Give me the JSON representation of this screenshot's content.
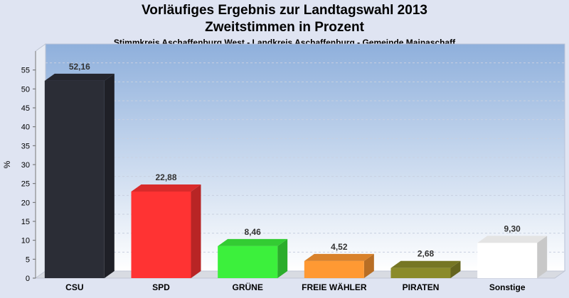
{
  "header": {
    "title_line1": "Vorläufiges Ergebnis zur Landtagswahl 2013",
    "title_line2": "Zweitstimmen in Prozent",
    "subtitle": "Stimmkreis Aschaffenburg West - Landkreis Aschaffenburg - Gemeinde Mainaschaff"
  },
  "chart_data": {
    "type": "bar",
    "title": "Vorläufiges Ergebnis zur Landtagswahl 2013 Zweitstimmen in Prozent",
    "subtitle": "Stimmkreis Aschaffenburg West - Landkreis Aschaffenburg - Gemeinde Mainaschaff",
    "ylabel": "%",
    "xlabel": "",
    "ylim": [
      0,
      60
    ],
    "yticks": [
      0,
      5,
      10,
      15,
      20,
      25,
      30,
      35,
      40,
      45,
      50,
      55
    ],
    "categories": [
      "CSU",
      "SPD",
      "GRÜNE",
      "FREIE WÄHLER",
      "PIRATEN",
      "Sonstige"
    ],
    "values": [
      52.16,
      22.88,
      8.46,
      4.52,
      2.68,
      9.3
    ],
    "value_labels": [
      "52,16",
      "22,88",
      "8,46",
      "4,52",
      "2,68",
      "9,30"
    ],
    "colors": [
      "#2b2d36",
      "#ff3333",
      "#3cf03c",
      "#ff9933",
      "#8b8b2a",
      "#ffffff"
    ],
    "grid": true,
    "style": "3d"
  }
}
